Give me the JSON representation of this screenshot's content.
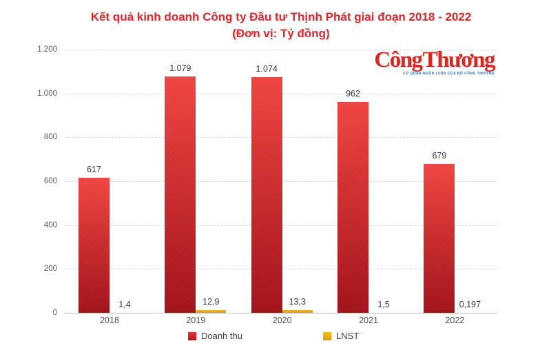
{
  "title": {
    "line1": "Kết quả kinh doanh Công ty Đầu tư Thịnh Phát giai đoạn 2018 - 2022",
    "line2": "(Đơn vị: Tỷ đồng)"
  },
  "logo": {
    "text": "Công Thương",
    "tagline": "CƠ QUAN NGÔN LUẬN CỦA BỘ CÔNG THƯƠNG"
  },
  "chart_data": {
    "type": "bar",
    "title": "Kết quả kinh doanh Công ty Đầu tư Thịnh Phát giai đoạn 2018 - 2022",
    "subtitle": "(Đơn vị: Tỷ đồng)",
    "unit": "Tỷ đồng",
    "categories": [
      "2018",
      "2019",
      "2020",
      "2021",
      "2022"
    ],
    "series": [
      {
        "name": "Doanh thu",
        "values": [
          617,
          1079,
          1074,
          962,
          679
        ],
        "labels": [
          "617",
          "1.079",
          "1.074",
          "962",
          "679"
        ],
        "color_top": "#ef423e",
        "color_bottom": "#a10f16"
      },
      {
        "name": "LNST",
        "values": [
          1.4,
          12.9,
          13.3,
          1.5,
          0.197
        ],
        "labels": [
          "1,4",
          "12,9",
          "13,3",
          "1,5",
          "0,197"
        ],
        "color_top": "#f1b524",
        "color_bottom": "#dd9b10"
      }
    ],
    "ylim": [
      0,
      1200
    ],
    "yticks": [
      {
        "value": 1200,
        "label": "1.200"
      },
      {
        "value": 1000,
        "label": "1.000"
      },
      {
        "value": 800,
        "label": "800"
      },
      {
        "value": 600,
        "label": "600"
      },
      {
        "value": 400,
        "label": "400"
      },
      {
        "value": 200,
        "label": "200"
      },
      {
        "value": 0,
        "label": "0"
      }
    ],
    "grid": "horizontal-dotted",
    "legend_position": "bottom"
  },
  "legend": {
    "items": [
      {
        "label": "Doanh thu",
        "color_top": "#e63438",
        "color_bottom": "#c2151b"
      },
      {
        "label": "LNST",
        "color_top": "#f5ba16",
        "color_bottom": "#df9d08"
      }
    ]
  },
  "colors": {
    "title_red": "#e8242a",
    "logo_red": "#e2231a",
    "tagline_blue": "#2f70b5",
    "gridline": "#d4d4d4",
    "axis_line": "#bdbdbd",
    "tick_text": "#5a5a5a",
    "value_text": "#3a3a3a",
    "background": "#ffffff"
  }
}
